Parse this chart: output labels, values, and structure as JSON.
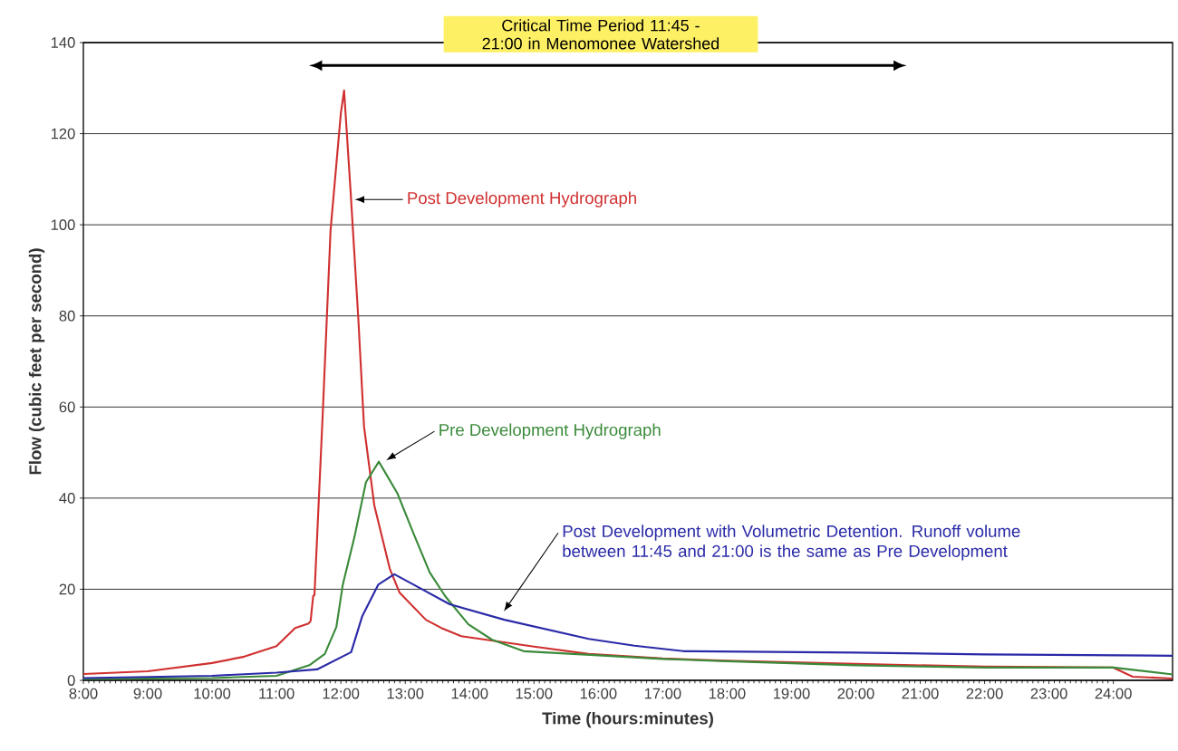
{
  "chart_data": {
    "type": "line",
    "xlabel": "Time (hours:minutes)",
    "ylabel": "Flow (cubic feet per second)",
    "xlim": [
      8,
      24.92
    ],
    "ylim": [
      0,
      140
    ],
    "xticks": [
      {
        "value": 8,
        "label": "8:00"
      },
      {
        "value": 9,
        "label": "9:00"
      },
      {
        "value": 10,
        "label": "10:00"
      },
      {
        "value": 11,
        "label": "11:00"
      },
      {
        "value": 12,
        "label": "12:00"
      },
      {
        "value": 13,
        "label": "13:00"
      },
      {
        "value": 14,
        "label": "14:00"
      },
      {
        "value": 15,
        "label": "15:00"
      },
      {
        "value": 16,
        "label": "16:00"
      },
      {
        "value": 17,
        "label": "17:00"
      },
      {
        "value": 18,
        "label": "18:00"
      },
      {
        "value": 19,
        "label": "19:00"
      },
      {
        "value": 20,
        "label": "20:00"
      },
      {
        "value": 21,
        "label": "21:00"
      },
      {
        "value": 22,
        "label": "22:00"
      },
      {
        "value": 23,
        "label": "23:00"
      },
      {
        "value": 24,
        "label": "24:00"
      }
    ],
    "yticks": [
      0,
      20,
      40,
      60,
      80,
      100,
      120,
      140
    ],
    "grid": "y",
    "series": [
      {
        "color": "#d03030",
        "x": [
          8,
          9,
          10,
          10.5,
          11,
          11.29,
          11.5,
          11.53,
          11.57,
          11.59,
          11.72,
          11.84,
          12.0,
          12.05,
          12.15,
          12.27,
          12.36,
          12.52,
          12.76,
          12.91,
          13.32,
          13.56,
          13.87,
          15,
          15.85,
          17,
          18,
          20,
          22,
          24,
          24.3,
          24.92
        ],
        "values": [
          1.4,
          2,
          3.8,
          5.2,
          7.5,
          11.5,
          12.5,
          13,
          18.5,
          18.7,
          59,
          98.8,
          124.5,
          129.5,
          107.6,
          79.7,
          55.7,
          38.4,
          24.5,
          19.3,
          13.3,
          11.5,
          9.7,
          7.4,
          5.8,
          4.8,
          4.3,
          3.6,
          3,
          2.8,
          0.8,
          0.4
        ]
      },
      {
        "color": "#3a8a3a",
        "x": [
          8,
          10,
          11,
          11.52,
          11.75,
          11.93,
          12.03,
          12.21,
          12.39,
          12.59,
          12.88,
          13.13,
          13.38,
          13.62,
          13.98,
          14.35,
          14.84,
          16,
          17,
          18,
          20,
          22,
          24,
          24.92
        ],
        "values": [
          0.3,
          0.5,
          1,
          3.4,
          5.8,
          11.7,
          21,
          31.4,
          43.5,
          48,
          41,
          32.2,
          23.7,
          18.5,
          12.3,
          8.9,
          6.4,
          5.5,
          4.7,
          4.2,
          3.3,
          2.8,
          2.8,
          1.3
        ]
      },
      {
        "color": "#2a2aa8",
        "x": [
          8,
          10,
          11,
          11.63,
          12.16,
          12.33,
          12.58,
          12.83,
          13.13,
          13.69,
          14.54,
          15.85,
          16.56,
          17.32,
          20,
          22,
          24.92
        ],
        "values": [
          0.5,
          1,
          1.7,
          2.4,
          6.2,
          14,
          21,
          23.3,
          21,
          16.7,
          13.3,
          9.1,
          7.6,
          6.4,
          6.1,
          5.7,
          5.4
        ]
      }
    ],
    "title": "Critical Time Period  11:45 - 21:00 in Menomonee Watershed",
    "annotations": [
      "Post Development Hydrograph",
      "Pre Development Hydrograph",
      "Post Development with Volumetric Detention.  Runoff volume between 11:45 and 21:00 is the same as Pre Development"
    ]
  }
}
